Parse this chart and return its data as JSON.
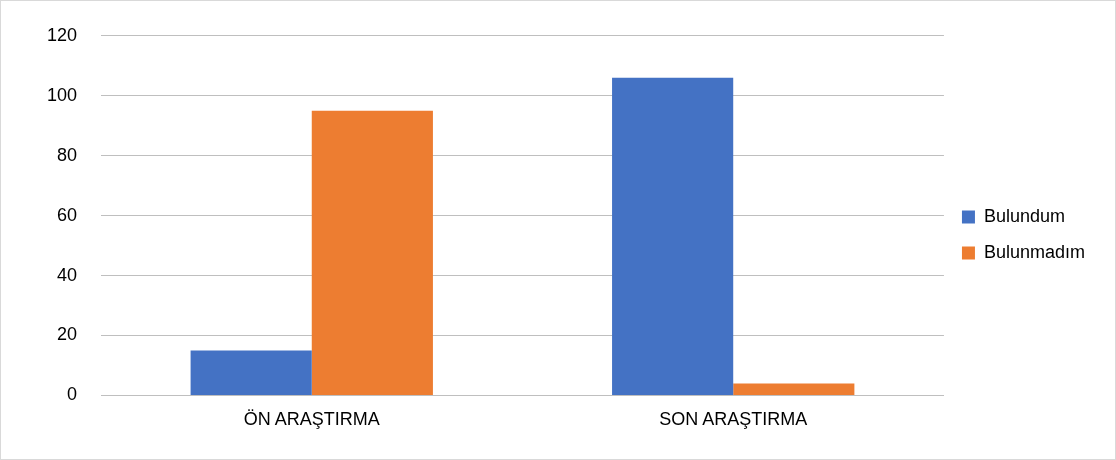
{
  "chart_data": {
    "type": "bar",
    "categories": [
      "ÖN ARAŞTIRMA",
      "SON ARAŞTIRMA"
    ],
    "series": [
      {
        "name": "Bulundum",
        "color": "#4472c4",
        "values": [
          15,
          106
        ]
      },
      {
        "name": "Bulunmadım",
        "color": "#ed7d31",
        "values": [
          95,
          4
        ]
      }
    ],
    "ylim": [
      0,
      120
    ],
    "yticks": [
      0,
      20,
      40,
      60,
      80,
      100,
      120
    ],
    "grid": "y",
    "legend": "right"
  }
}
